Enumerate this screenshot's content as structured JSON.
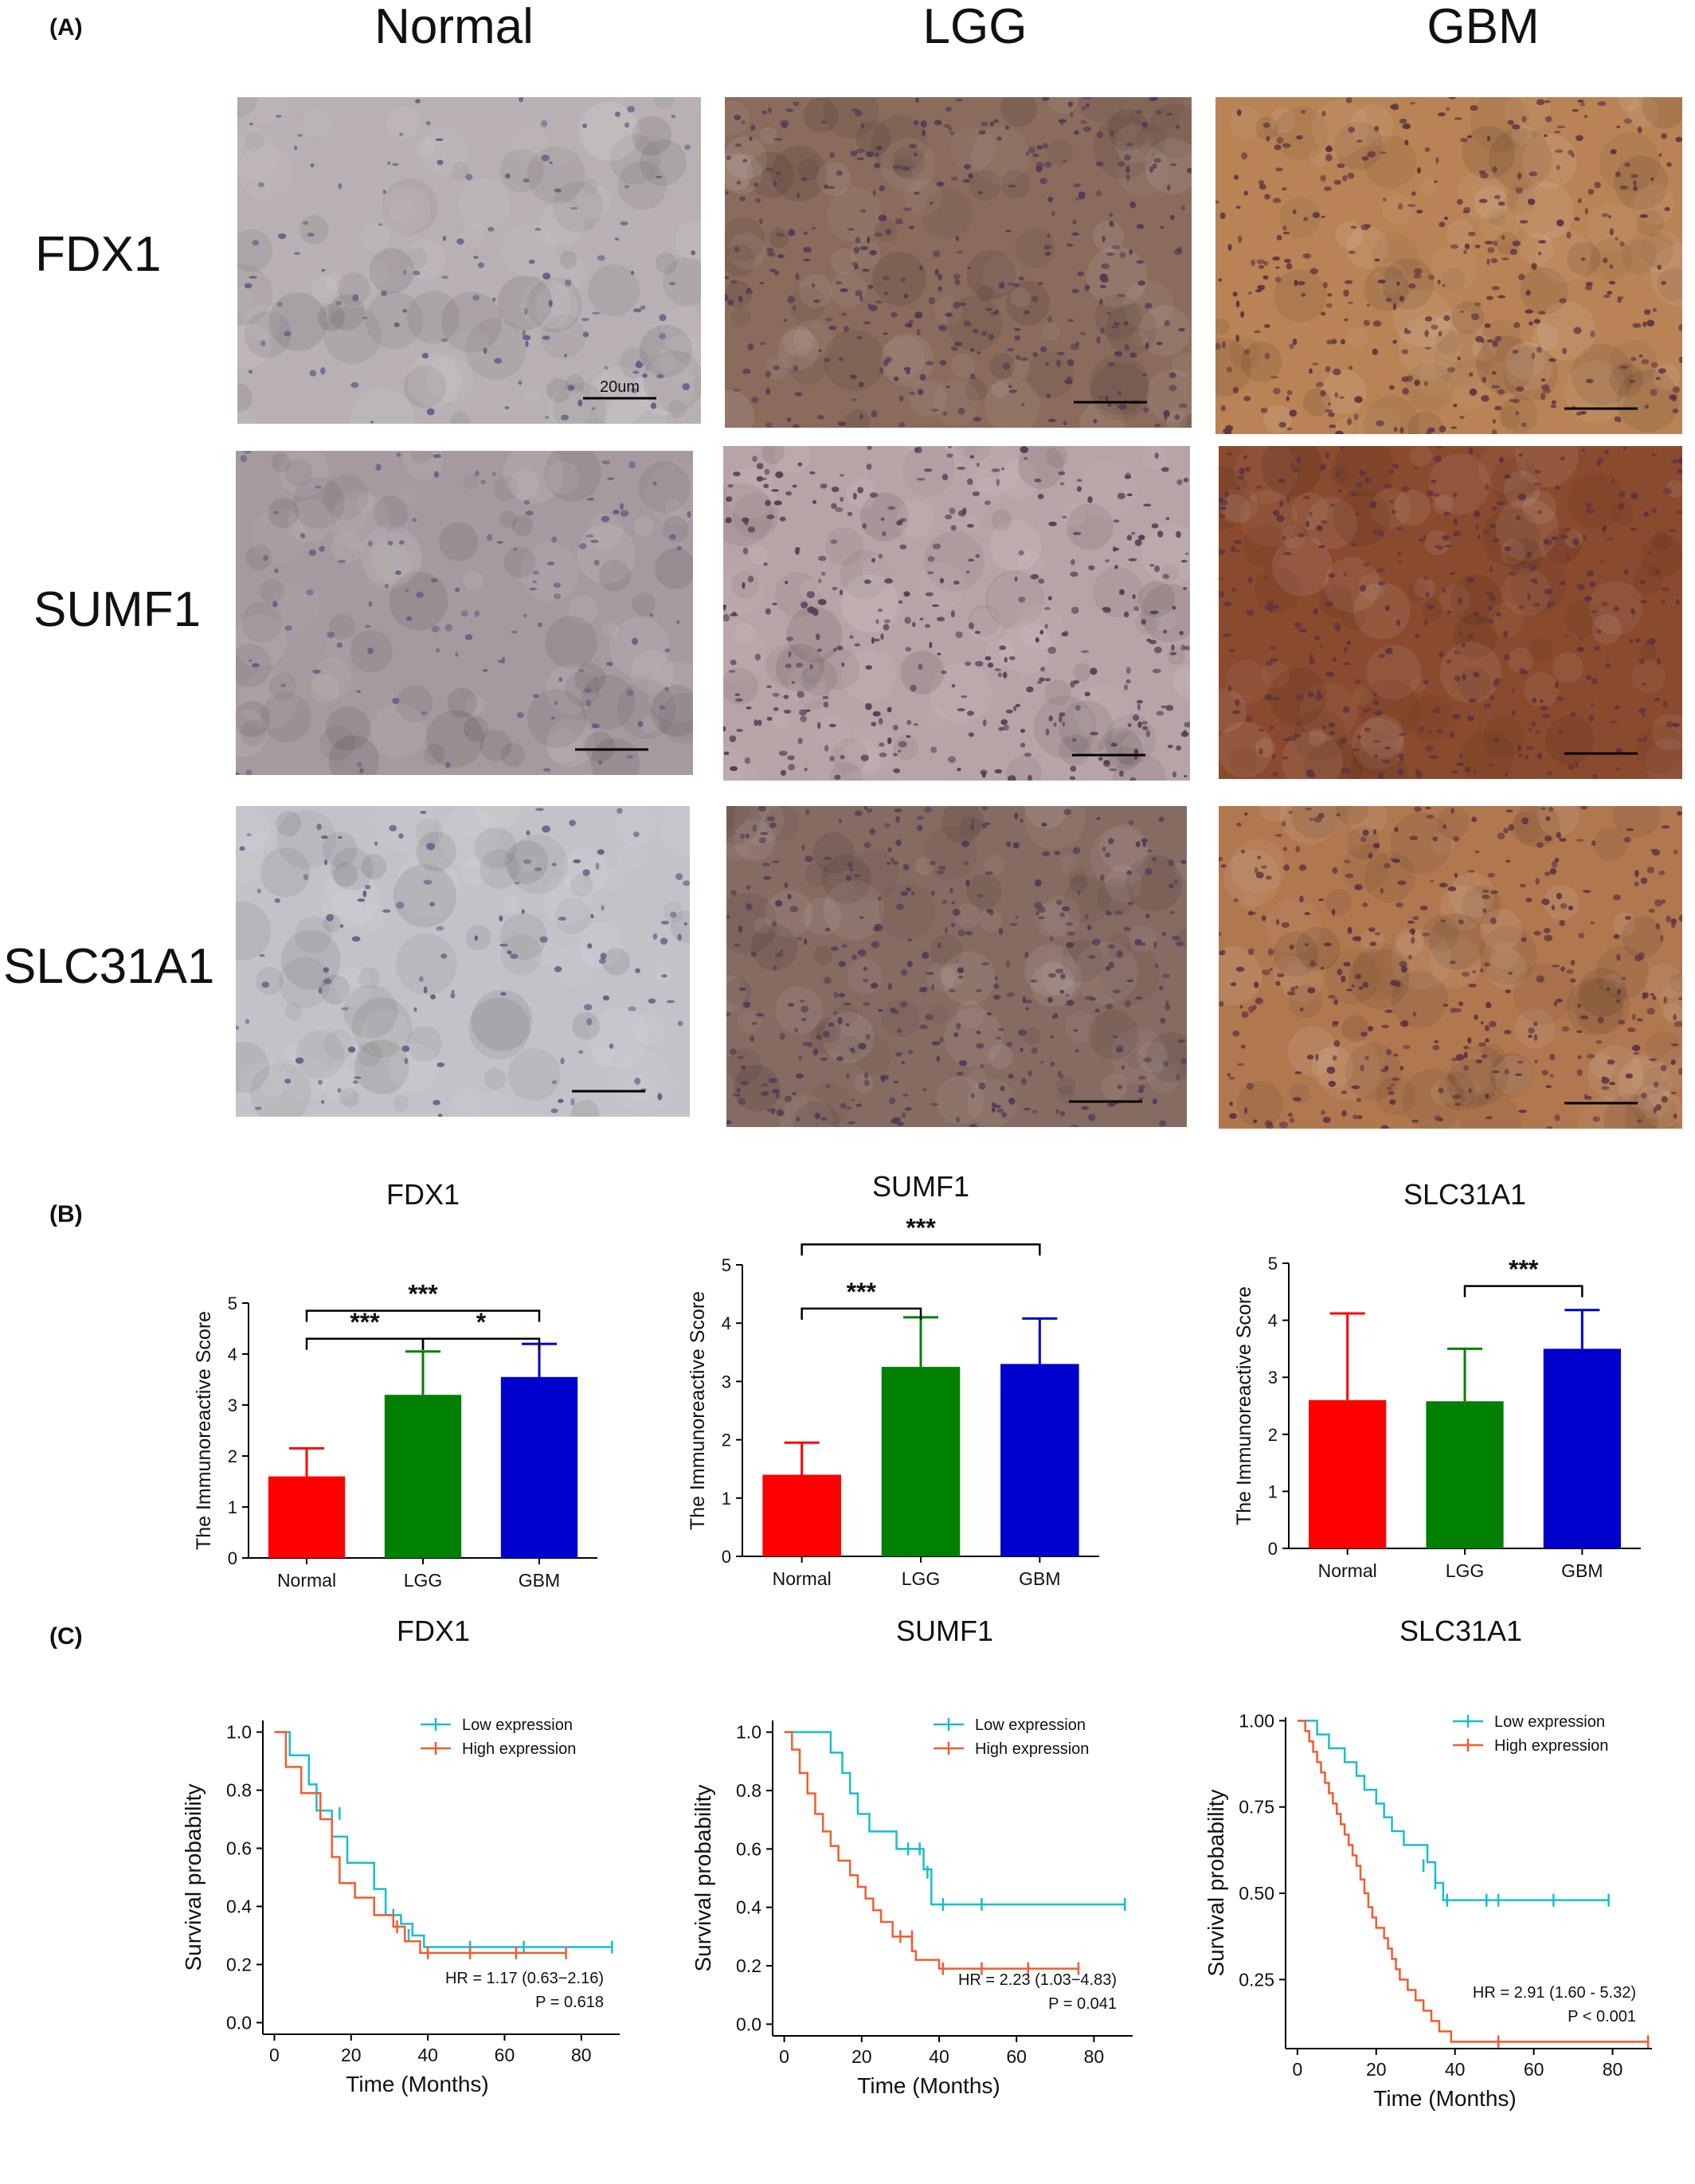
{
  "panel_labels": {
    "a": "(A)",
    "b": "(B)",
    "c": "(C)"
  },
  "ihc": {
    "columns": [
      "Normal",
      "LGG",
      "GBM"
    ],
    "rows": [
      "FDX1",
      "SUMF1",
      "SLC31A1"
    ],
    "scale_label": "20um",
    "tissue_colors": {
      "FDX1": [
        "#b8b0b2",
        "#8a6b5c",
        "#b98356"
      ],
      "SUMF1": [
        "#a69a9e",
        "#b8a3a6",
        "#8a4a2e"
      ],
      "SLC31A1": [
        "#c4c2c8",
        "#866b62",
        "#b17850"
      ]
    },
    "nucleus_colors": [
      "#5f5c86",
      "#4f3a55",
      "#5a3340"
    ]
  },
  "bar_colors": {
    "Normal": "#ff0000",
    "LGG": "#008000",
    "GBM": "#0000cd"
  },
  "km_colors": {
    "low": "#17becf",
    "high": "#f25c2e"
  },
  "chart_data": [
    {
      "type": "bar",
      "title": "FDX1",
      "ylabel": "The Immunoreactive Score",
      "categories": [
        "Normal",
        "LGG",
        "GBM"
      ],
      "values": [
        1.6,
        3.2,
        3.55
      ],
      "errors": [
        0.55,
        0.85,
        0.65
      ],
      "ylim": [
        0,
        5
      ],
      "yticks": [
        "0",
        "1",
        "2",
        "3",
        "4",
        "5"
      ],
      "significance": [
        {
          "from": "Normal",
          "to": "LGG",
          "label": "***",
          "level": 4.3
        },
        {
          "from": "LGG",
          "to": "GBM",
          "label": "*",
          "level": 4.3
        },
        {
          "from": "Normal",
          "to": "GBM",
          "label": "***",
          "level": 4.85
        }
      ]
    },
    {
      "type": "bar",
      "title": "SUMF1",
      "ylabel": "The Immunoreactive Score",
      "categories": [
        "Normal",
        "LGG",
        "GBM"
      ],
      "values": [
        1.4,
        3.25,
        3.3
      ],
      "errors": [
        0.55,
        0.85,
        0.78
      ],
      "ylim": [
        0,
        5
      ],
      "yticks": [
        "0",
        "1",
        "2",
        "3",
        "4",
        "5"
      ],
      "significance": [
        {
          "from": "Normal",
          "to": "LGG",
          "label": "***",
          "level": 4.25
        },
        {
          "from": "Normal",
          "to": "GBM",
          "label": "***",
          "level": 5.35
        }
      ]
    },
    {
      "type": "bar",
      "title": "SLC31A1",
      "ylabel": "The Immunoreactive Score",
      "categories": [
        "Normal",
        "LGG",
        "GBM"
      ],
      "values": [
        2.6,
        2.58,
        3.5
      ],
      "errors": [
        1.52,
        0.92,
        0.68
      ],
      "ylim": [
        0,
        5
      ],
      "yticks": [
        "0",
        "1",
        "2",
        "3",
        "4",
        "5"
      ],
      "significance": [
        {
          "from": "LGG",
          "to": "GBM",
          "label": "***",
          "level": 4.6
        }
      ]
    },
    {
      "type": "line",
      "title": "FDX1",
      "xlabel": "Time (Months)",
      "ylabel": "Survival probability",
      "xlim": [
        -3,
        90
      ],
      "ylim": [
        -0.04,
        1.04
      ],
      "xticks": [
        0,
        20,
        40,
        60,
        80
      ],
      "xtick_labels": [
        "0",
        "20",
        "40",
        "60",
        "80"
      ],
      "yticks": [
        0.0,
        0.2,
        0.4,
        0.6,
        0.8,
        1.0
      ],
      "ytick_labels": [
        "0.0",
        "0.2",
        "0.4",
        "0.6",
        "0.8",
        "1.0"
      ],
      "legend": [
        "Low expression",
        "High expression"
      ],
      "hr_text": "HR = 1.17 (0.63−2.16)",
      "p_text": "P = 0.618",
      "series": [
        {
          "name": "Low expression",
          "steps": [
            [
              0,
              1.0
            ],
            [
              4,
              0.92
            ],
            [
              9,
              0.82
            ],
            [
              11,
              0.73
            ],
            [
              15,
              0.64
            ],
            [
              19,
              0.55
            ],
            [
              26,
              0.46
            ],
            [
              29,
              0.37
            ],
            [
              33,
              0.34
            ],
            [
              36,
              0.3
            ],
            [
              39,
              0.26
            ],
            [
              88,
              0.26
            ]
          ],
          "censors": [
            [
              17,
              0.72
            ],
            [
              31,
              0.37
            ],
            [
              35,
              0.3
            ],
            [
              51,
              0.26
            ],
            [
              65,
              0.26
            ],
            [
              88,
              0.26
            ]
          ]
        },
        {
          "name": "High expression",
          "steps": [
            [
              0,
              1.0
            ],
            [
              3,
              0.88
            ],
            [
              7,
              0.79
            ],
            [
              12,
              0.7
            ],
            [
              15,
              0.57
            ],
            [
              17,
              0.48
            ],
            [
              21,
              0.43
            ],
            [
              26,
              0.37
            ],
            [
              31,
              0.33
            ],
            [
              34,
              0.28
            ],
            [
              38,
              0.24
            ],
            [
              76,
              0.24
            ]
          ],
          "censors": [
            [
              32,
              0.33
            ],
            [
              40,
              0.24
            ],
            [
              51,
              0.24
            ],
            [
              63,
              0.24
            ],
            [
              76,
              0.24
            ]
          ]
        }
      ]
    },
    {
      "type": "line",
      "title": "SUMF1",
      "xlabel": "Time (Months)",
      "ylabel": "Survival probability",
      "xlim": [
        -3,
        90
      ],
      "ylim": [
        -0.04,
        1.04
      ],
      "xticks": [
        0,
        20,
        40,
        60,
        80
      ],
      "xtick_labels": [
        "0",
        "20",
        "40",
        "60",
        "80"
      ],
      "yticks": [
        0.0,
        0.2,
        0.4,
        0.6,
        0.8,
        1.0
      ],
      "ytick_labels": [
        "0.0",
        "0.2",
        "0.4",
        "0.6",
        "0.8",
        "1.0"
      ],
      "legend": [
        "Low expression",
        "High expression"
      ],
      "hr_text": "HR = 2.23 (1.03−4.83)",
      "p_text": "P = 0.041",
      "series": [
        {
          "name": "Low expression",
          "steps": [
            [
              0,
              1.0
            ],
            [
              12,
              0.93
            ],
            [
              15,
              0.86
            ],
            [
              17,
              0.79
            ],
            [
              19,
              0.72
            ],
            [
              22,
              0.66
            ],
            [
              29,
              0.6
            ],
            [
              36,
              0.53
            ],
            [
              38,
              0.41
            ],
            [
              88,
              0.41
            ]
          ],
          "censors": [
            [
              32,
              0.6
            ],
            [
              35,
              0.6
            ],
            [
              37,
              0.52
            ],
            [
              41,
              0.41
            ],
            [
              51,
              0.41
            ],
            [
              88,
              0.41
            ]
          ]
        },
        {
          "name": "High expression",
          "steps": [
            [
              0,
              1.0
            ],
            [
              2,
              0.94
            ],
            [
              4,
              0.86
            ],
            [
              6,
              0.79
            ],
            [
              8,
              0.72
            ],
            [
              10,
              0.66
            ],
            [
              12,
              0.61
            ],
            [
              14,
              0.56
            ],
            [
              17,
              0.51
            ],
            [
              19,
              0.47
            ],
            [
              21,
              0.43
            ],
            [
              23,
              0.39
            ],
            [
              25,
              0.35
            ],
            [
              28,
              0.3
            ],
            [
              33,
              0.25
            ],
            [
              34,
              0.22
            ],
            [
              40,
              0.19
            ],
            [
              76,
              0.19
            ]
          ],
          "censors": [
            [
              30,
              0.3
            ],
            [
              33,
              0.3
            ],
            [
              41,
              0.19
            ],
            [
              51,
              0.19
            ],
            [
              63,
              0.19
            ],
            [
              76,
              0.19
            ]
          ]
        }
      ]
    },
    {
      "type": "line",
      "title": "SLC31A1",
      "xlabel": "Time (Months)",
      "ylabel": "Survival probability",
      "xlim": [
        -3,
        90
      ],
      "ylim": [
        0.05,
        1.01
      ],
      "xticks": [
        0,
        20,
        40,
        60,
        80
      ],
      "xtick_labels": [
        "0",
        "20",
        "40",
        "60",
        "80"
      ],
      "yticks": [
        0.25,
        0.5,
        0.75,
        1.0
      ],
      "ytick_labels": [
        "0.25",
        "0.50",
        "0.75",
        "1.00"
      ],
      "legend": [
        "Low expression",
        "High expression"
      ],
      "hr_text": "HR = 2.91 (1.60 - 5.32)",
      "p_text": "P < 0.001",
      "series": [
        {
          "name": "Low expression",
          "steps": [
            [
              0,
              1.0
            ],
            [
              5,
              0.96
            ],
            [
              8,
              0.92
            ],
            [
              12,
              0.88
            ],
            [
              15,
              0.84
            ],
            [
              17,
              0.8
            ],
            [
              20,
              0.76
            ],
            [
              22,
              0.72
            ],
            [
              24,
              0.68
            ],
            [
              27,
              0.64
            ],
            [
              33,
              0.59
            ],
            [
              35,
              0.53
            ],
            [
              37,
              0.48
            ],
            [
              79,
              0.48
            ]
          ],
          "censors": [
            [
              32,
              0.58
            ],
            [
              35,
              0.53
            ],
            [
              38,
              0.48
            ],
            [
              48,
              0.48
            ],
            [
              51,
              0.48
            ],
            [
              65,
              0.48
            ],
            [
              79,
              0.48
            ]
          ]
        },
        {
          "name": "High expression",
          "steps": [
            [
              0,
              1.0
            ],
            [
              2,
              0.97
            ],
            [
              3,
              0.94
            ],
            [
              4,
              0.91
            ],
            [
              5,
              0.88
            ],
            [
              6,
              0.85
            ],
            [
              7,
              0.82
            ],
            [
              8,
              0.79
            ],
            [
              9,
              0.76
            ],
            [
              10,
              0.73
            ],
            [
              11,
              0.7
            ],
            [
              12,
              0.67
            ],
            [
              13,
              0.64
            ],
            [
              14,
              0.61
            ],
            [
              15,
              0.58
            ],
            [
              16,
              0.54
            ],
            [
              17,
              0.5
            ],
            [
              18,
              0.46
            ],
            [
              19,
              0.43
            ],
            [
              20,
              0.4
            ],
            [
              22,
              0.37
            ],
            [
              23,
              0.34
            ],
            [
              24,
              0.31
            ],
            [
              25,
              0.28
            ],
            [
              26,
              0.25
            ],
            [
              28,
              0.22
            ],
            [
              30,
              0.19
            ],
            [
              32,
              0.16
            ],
            [
              34,
              0.13
            ],
            [
              36,
              0.1
            ],
            [
              39,
              0.07
            ],
            [
              89,
              0.07
            ]
          ],
          "censors": [
            [
              51,
              0.07
            ],
            [
              89,
              0.07
            ]
          ]
        }
      ]
    }
  ]
}
